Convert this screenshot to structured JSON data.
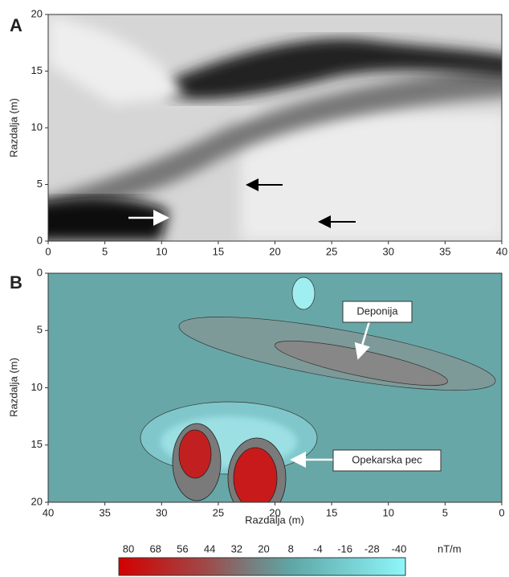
{
  "chart_data": [
    {
      "type": "heatmap",
      "panel_label": "A",
      "ylabel": "Razdalja (m)",
      "xlim": [
        0,
        40
      ],
      "xticks": [
        0,
        5,
        10,
        15,
        20,
        25,
        30,
        35,
        40
      ],
      "ylim": [
        0,
        20
      ],
      "yticks": [
        0,
        5,
        10,
        15,
        20
      ]
    },
    {
      "type": "contour",
      "panel_label": "B",
      "ylabel": "Razdalja (m)",
      "xlabel": "Razdalja (m)",
      "xlim": [
        40,
        0
      ],
      "xticks": [
        40,
        35,
        30,
        25,
        20,
        15,
        10,
        5,
        0
      ],
      "ylim": [
        20,
        0
      ],
      "yticks": [
        0,
        5,
        10,
        15,
        20
      ],
      "annotations": [
        "Deponija",
        "Opekarska pec"
      ],
      "colorbar_ticks": [
        80,
        68,
        56,
        44,
        32,
        20,
        8,
        -4,
        -16,
        -28,
        -40
      ],
      "colorbar_label": "nT/m"
    }
  ]
}
